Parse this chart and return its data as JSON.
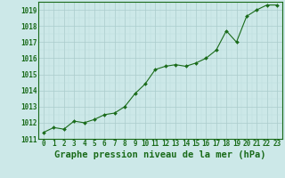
{
  "x": [
    0,
    1,
    2,
    3,
    4,
    5,
    6,
    7,
    8,
    9,
    10,
    11,
    12,
    13,
    14,
    15,
    16,
    17,
    18,
    19,
    20,
    21,
    22,
    23
  ],
  "y": [
    1011.4,
    1011.7,
    1011.6,
    1012.1,
    1012.0,
    1012.2,
    1012.5,
    1012.6,
    1013.0,
    1013.8,
    1014.4,
    1015.3,
    1015.5,
    1015.6,
    1015.5,
    1015.7,
    1016.0,
    1016.5,
    1017.7,
    1017.0,
    1018.6,
    1019.0,
    1019.3,
    1019.3
  ],
  "line_color": "#1a6b1a",
  "marker_color": "#1a6b1a",
  "bg_color": "#cce8e8",
  "grid_color_major": "#aacccc",
  "grid_color_minor": "#bbdddd",
  "xlabel": "Graphe pression niveau de la mer (hPa)",
  "ylim": [
    1011,
    1019.5
  ],
  "xlim": [
    -0.5,
    23.5
  ],
  "yticks": [
    1011,
    1012,
    1013,
    1014,
    1015,
    1016,
    1017,
    1018,
    1019
  ],
  "xticks": [
    0,
    1,
    2,
    3,
    4,
    5,
    6,
    7,
    8,
    9,
    10,
    11,
    12,
    13,
    14,
    15,
    16,
    17,
    18,
    19,
    20,
    21,
    22,
    23
  ],
  "tick_fontsize": 5.5,
  "xlabel_fontsize": 7.5
}
